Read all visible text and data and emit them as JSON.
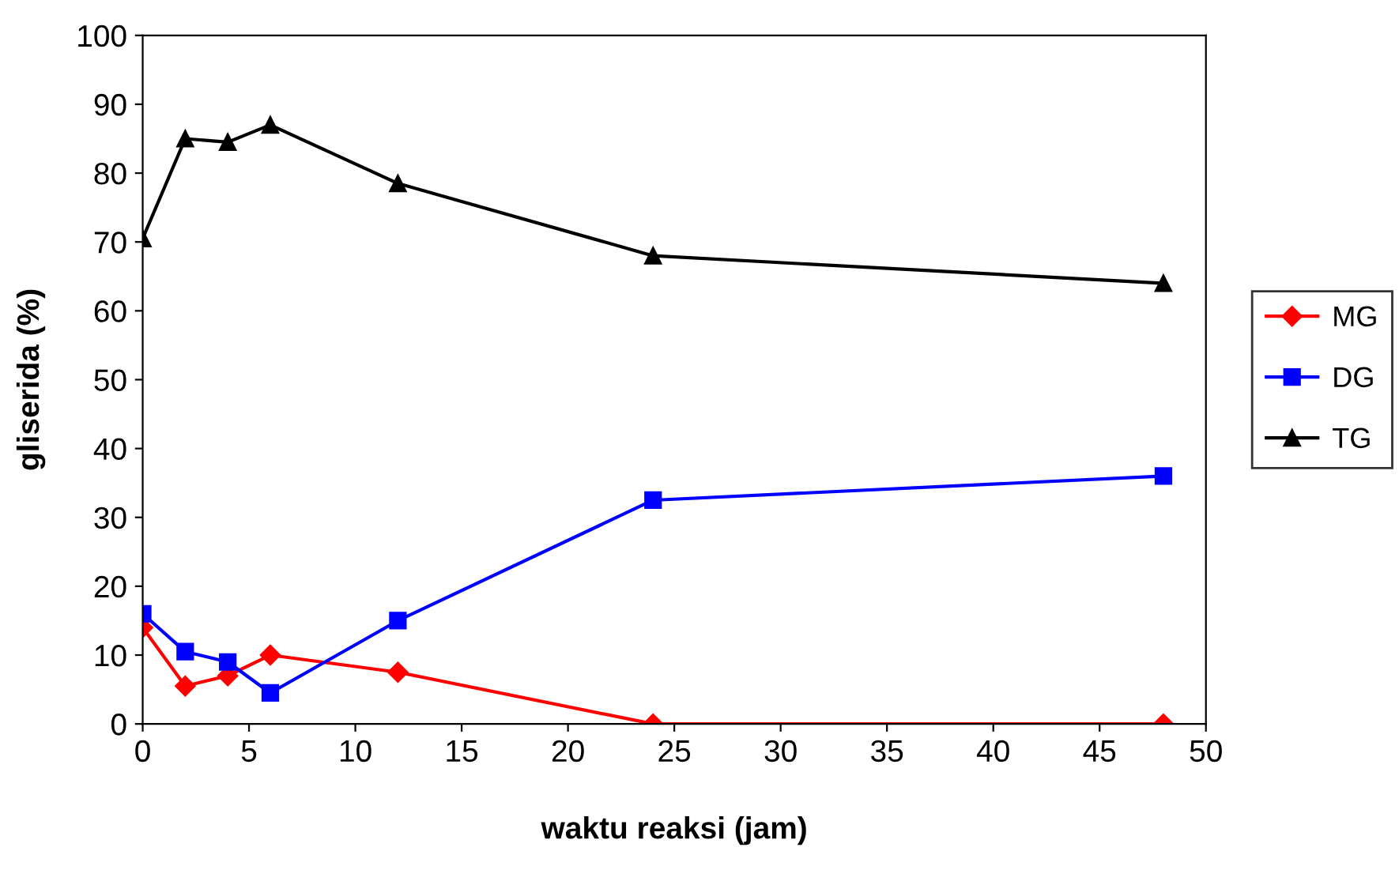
{
  "chart_data": {
    "type": "line",
    "xlabel": "waktu reaksi (jam)",
    "ylabel": "gliserida (%)",
    "x": [
      0,
      2,
      4,
      6,
      12,
      24,
      48
    ],
    "series": [
      {
        "name": "MG",
        "color": "#ff0000",
        "marker": "diamond",
        "values": [
          14,
          5.5,
          7,
          10,
          7.5,
          0,
          0
        ]
      },
      {
        "name": "DG",
        "color": "#0000ff",
        "marker": "square",
        "values": [
          16,
          10.5,
          9,
          4.5,
          15,
          32.5,
          36
        ]
      },
      {
        "name": "TG",
        "color": "#000000",
        "marker": "triangle",
        "values": [
          70.5,
          85,
          84.5,
          87,
          78.5,
          68,
          64
        ]
      }
    ],
    "xlim": [
      0,
      50
    ],
    "xticks": [
      0,
      5,
      10,
      15,
      20,
      25,
      30,
      35,
      40,
      45,
      50
    ],
    "ylim": [
      0,
      100
    ],
    "yticks": [
      0,
      10,
      20,
      30,
      40,
      50,
      60,
      70,
      80,
      90,
      100
    ],
    "grid": false,
    "legend": "right",
    "line_style": "solid"
  }
}
